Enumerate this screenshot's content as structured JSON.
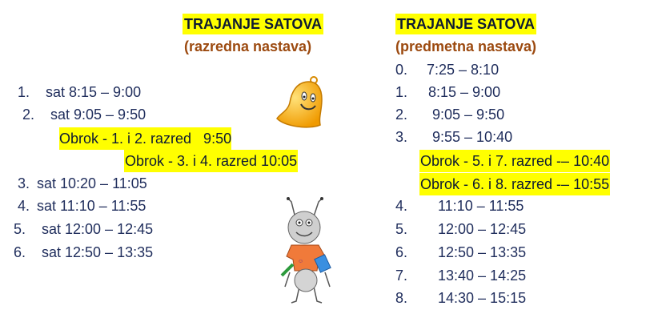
{
  "left": {
    "title": "TRAJANJE SATOVA",
    "subtitle": "(razredna nastava)",
    "rows": [
      {
        "num": "1.",
        "text": "sat 8:15 – 9:00"
      },
      {
        "num": "2.",
        "text": "sat 9:05 – 9:50"
      },
      {
        "num": "3.",
        "text": "sat 10:20 – 11:05"
      },
      {
        "num": "4.",
        "text": "sat 11:10 – 11:55"
      },
      {
        "num": "5.",
        "text": "sat 12:00 – 12:45"
      },
      {
        "num": "6.",
        "text": "sat 12:50 – 13:35"
      }
    ],
    "meals": [
      "Obrok - 1. i 2. razred   9:50",
      "Obrok - 3. i 4. razred 10:05"
    ]
  },
  "right": {
    "title": "TRAJANJE SATOVA",
    "subtitle": "(predmetna nastava)",
    "rows": [
      {
        "num": "0.",
        "text": "7:25 – 8:10"
      },
      {
        "num": "1.",
        "text": "8:15 – 9:00"
      },
      {
        "num": "2.",
        "text": "9:05 – 9:50"
      },
      {
        "num": "3.",
        "text": "9:55 – 10:40"
      },
      {
        "num": "4.",
        "text": "11:10 – 11:55"
      },
      {
        "num": "5.",
        "text": "12:00 – 12:45"
      },
      {
        "num": "6.",
        "text": "12:50 – 13:35"
      },
      {
        "num": "7.",
        "text": "13:40 – 14:25"
      },
      {
        "num": "8.",
        "text": "14:30 – 15:15"
      }
    ],
    "meals": [
      "Obrok - 5. i 7. razred -– 10:40",
      "Obrok - 6. i 8. razred -– 10:55"
    ]
  },
  "colors": {
    "highlight": "#ffff00",
    "title": "#9c4a10",
    "text": "#1f2d5c"
  },
  "icons": [
    "bell-illustration",
    "ant-illustration"
  ]
}
